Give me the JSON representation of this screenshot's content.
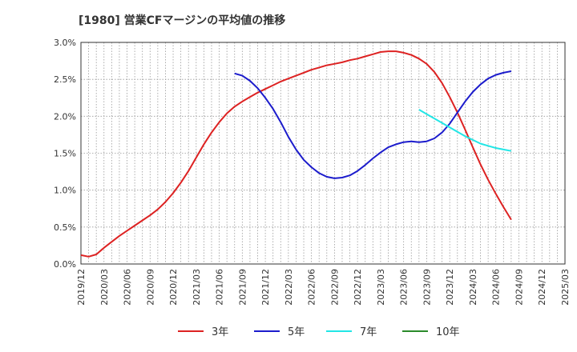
{
  "chart_data": {
    "type": "line",
    "title": "[1980]  営業CFマージンの平均値の推移",
    "xlabel": "",
    "ylabel": "",
    "x_ticks": [
      "2019/12",
      "2020/03",
      "2020/06",
      "2020/09",
      "2020/12",
      "2021/03",
      "2021/06",
      "2021/09",
      "2021/12",
      "2022/03",
      "2022/06",
      "2022/09",
      "2022/12",
      "2023/03",
      "2023/06",
      "2023/09",
      "2023/12",
      "2024/03",
      "2024/06",
      "2024/09",
      "2024/12",
      "2025/03"
    ],
    "y_ticks": [
      "0.0%",
      "0.5%",
      "1.0%",
      "1.5%",
      "2.0%",
      "2.5%",
      "3.0%"
    ],
    "ylim": [
      0,
      3.0
    ],
    "grid": true,
    "legend_position": "bottom",
    "series": [
      {
        "name": "3年",
        "color": "#dd2222",
        "points": [
          [
            "2019/12",
            0.12
          ],
          [
            "2020/01",
            0.1
          ],
          [
            "2020/02",
            0.13
          ],
          [
            "2020/03",
            0.22
          ],
          [
            "2020/04",
            0.3
          ],
          [
            "2020/05",
            0.38
          ],
          [
            "2020/06",
            0.45
          ],
          [
            "2020/07",
            0.52
          ],
          [
            "2020/08",
            0.59
          ],
          [
            "2020/09",
            0.66
          ],
          [
            "2020/10",
            0.74
          ],
          [
            "2020/11",
            0.84
          ],
          [
            "2020/12",
            0.96
          ],
          [
            "2021/01",
            1.1
          ],
          [
            "2021/02",
            1.26
          ],
          [
            "2021/03",
            1.44
          ],
          [
            "2021/04",
            1.62
          ],
          [
            "2021/05",
            1.78
          ],
          [
            "2021/06",
            1.92
          ],
          [
            "2021/07",
            2.04
          ],
          [
            "2021/08",
            2.13
          ],
          [
            "2021/09",
            2.2
          ],
          [
            "2021/10",
            2.26
          ],
          [
            "2021/11",
            2.32
          ],
          [
            "2021/12",
            2.37
          ],
          [
            "2022/01",
            2.42
          ],
          [
            "2022/02",
            2.47
          ],
          [
            "2022/03",
            2.51
          ],
          [
            "2022/04",
            2.55
          ],
          [
            "2022/05",
            2.59
          ],
          [
            "2022/06",
            2.63
          ],
          [
            "2022/07",
            2.66
          ],
          [
            "2022/08",
            2.69
          ],
          [
            "2022/09",
            2.71
          ],
          [
            "2022/10",
            2.73
          ],
          [
            "2022/11",
            2.76
          ],
          [
            "2022/12",
            2.78
          ],
          [
            "2023/01",
            2.81
          ],
          [
            "2023/02",
            2.84
          ],
          [
            "2023/03",
            2.87
          ],
          [
            "2023/04",
            2.88
          ],
          [
            "2023/05",
            2.88
          ],
          [
            "2023/06",
            2.86
          ],
          [
            "2023/07",
            2.83
          ],
          [
            "2023/08",
            2.78
          ],
          [
            "2023/09",
            2.71
          ],
          [
            "2023/10",
            2.6
          ],
          [
            "2023/11",
            2.45
          ],
          [
            "2023/12",
            2.26
          ],
          [
            "2024/01",
            2.05
          ],
          [
            "2024/02",
            1.82
          ],
          [
            "2024/03",
            1.58
          ],
          [
            "2024/04",
            1.35
          ],
          [
            "2024/05",
            1.14
          ],
          [
            "2024/06",
            0.95
          ],
          [
            "2024/07",
            0.77
          ],
          [
            "2024/08",
            0.6
          ]
        ]
      },
      {
        "name": "5年",
        "color": "#1c1ccc",
        "points": [
          [
            "2021/08",
            2.58
          ],
          [
            "2021/09",
            2.55
          ],
          [
            "2021/10",
            2.48
          ],
          [
            "2021/11",
            2.38
          ],
          [
            "2021/12",
            2.25
          ],
          [
            "2022/01",
            2.1
          ],
          [
            "2022/02",
            1.92
          ],
          [
            "2022/03",
            1.72
          ],
          [
            "2022/04",
            1.55
          ],
          [
            "2022/05",
            1.41
          ],
          [
            "2022/06",
            1.31
          ],
          [
            "2022/07",
            1.23
          ],
          [
            "2022/08",
            1.18
          ],
          [
            "2022/09",
            1.16
          ],
          [
            "2022/10",
            1.17
          ],
          [
            "2022/11",
            1.2
          ],
          [
            "2022/12",
            1.26
          ],
          [
            "2023/01",
            1.34
          ],
          [
            "2023/02",
            1.43
          ],
          [
            "2023/03",
            1.51
          ],
          [
            "2023/04",
            1.58
          ],
          [
            "2023/05",
            1.62
          ],
          [
            "2023/06",
            1.65
          ],
          [
            "2023/07",
            1.66
          ],
          [
            "2023/08",
            1.65
          ],
          [
            "2023/09",
            1.66
          ],
          [
            "2023/10",
            1.7
          ],
          [
            "2023/11",
            1.78
          ],
          [
            "2023/12",
            1.9
          ],
          [
            "2024/01",
            2.05
          ],
          [
            "2024/02",
            2.2
          ],
          [
            "2024/03",
            2.33
          ],
          [
            "2024/04",
            2.43
          ],
          [
            "2024/05",
            2.51
          ],
          [
            "2024/06",
            2.56
          ],
          [
            "2024/07",
            2.59
          ],
          [
            "2024/08",
            2.61
          ]
        ]
      },
      {
        "name": "7年",
        "color": "#22e6e6",
        "points": [
          [
            "2023/08",
            2.09
          ],
          [
            "2023/09",
            2.03
          ],
          [
            "2023/10",
            1.97
          ],
          [
            "2023/11",
            1.91
          ],
          [
            "2023/12",
            1.85
          ],
          [
            "2024/01",
            1.79
          ],
          [
            "2024/02",
            1.73
          ],
          [
            "2024/03",
            1.68
          ],
          [
            "2024/04",
            1.63
          ],
          [
            "2024/05",
            1.6
          ],
          [
            "2024/06",
            1.57
          ],
          [
            "2024/07",
            1.55
          ],
          [
            "2024/08",
            1.53
          ]
        ]
      },
      {
        "name": "10年",
        "color": "#2a8a2a",
        "points": []
      }
    ]
  }
}
